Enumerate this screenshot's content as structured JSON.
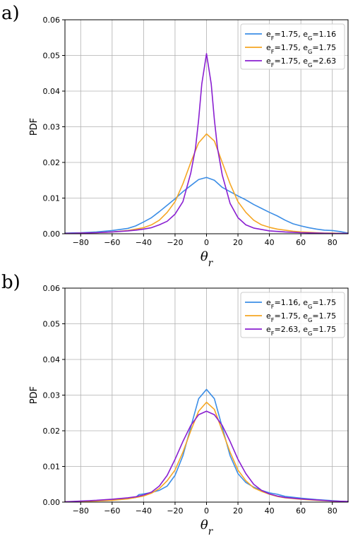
{
  "chart_data": [
    {
      "type": "line",
      "panel_label": "a)",
      "xlabel": "θ",
      "xlabel_sub": "r",
      "ylabel": "PDF",
      "xlim": [
        -90,
        90
      ],
      "ylim": [
        0,
        0.06
      ],
      "xticks": [
        -80,
        -60,
        -40,
        -20,
        0,
        20,
        40,
        60,
        80
      ],
      "yticks": [
        0.0,
        0.01,
        0.02,
        0.03,
        0.04,
        0.05,
        0.06
      ],
      "ytick_labels": [
        "0.00",
        "0.01",
        "0.02",
        "0.03",
        "0.04",
        "0.05",
        "0.06"
      ],
      "grid": true,
      "legend_position": "top-right",
      "series": [
        {
          "name": "e_F=1.75, e_G=1.16",
          "legend": {
            "a": "e",
            "a_sub": "F",
            "b": "=1.75, e",
            "b_sub": "G",
            "c": "=1.16"
          },
          "color": "#3c8ee6",
          "x": [
            -90,
            -80,
            -70,
            -60,
            -50,
            -45,
            -40,
            -35,
            -30,
            -25,
            -20,
            -15,
            -10,
            -5,
            0,
            5,
            10,
            15,
            20,
            25,
            30,
            35,
            40,
            45,
            50,
            55,
            60,
            65,
            70,
            75,
            80,
            85,
            90
          ],
          "y": [
            0.0002,
            0.0003,
            0.0005,
            0.0009,
            0.0015,
            0.0022,
            0.0033,
            0.0045,
            0.0062,
            0.008,
            0.0098,
            0.0118,
            0.0135,
            0.0152,
            0.0158,
            0.015,
            0.013,
            0.0118,
            0.0106,
            0.0095,
            0.0082,
            0.0071,
            0.006,
            0.005,
            0.0038,
            0.0028,
            0.0022,
            0.0017,
            0.0013,
            0.001,
            0.0009,
            0.0006,
            0.0002
          ]
        },
        {
          "name": "e_F=1.75, e_G=1.75",
          "legend": {
            "a": "e",
            "a_sub": "F",
            "b": "=1.75, e",
            "b_sub": "G",
            "c": "=1.75"
          },
          "color": "#f5a623",
          "x": [
            -90,
            -80,
            -70,
            -60,
            -50,
            -45,
            -40,
            -35,
            -30,
            -25,
            -20,
            -15,
            -10,
            -5,
            0,
            5,
            10,
            15,
            20,
            25,
            30,
            35,
            40,
            45,
            50,
            55,
            60,
            65,
            70,
            75,
            80,
            85,
            90
          ],
          "y": [
            0.0001,
            0.0002,
            0.0003,
            0.0005,
            0.0009,
            0.0013,
            0.0017,
            0.0025,
            0.0038,
            0.006,
            0.009,
            0.014,
            0.02,
            0.0255,
            0.028,
            0.026,
            0.02,
            0.014,
            0.009,
            0.006,
            0.0038,
            0.0025,
            0.0018,
            0.0013,
            0.001,
            0.0007,
            0.0005,
            0.0004,
            0.0003,
            0.0002,
            0.0002,
            0.0001,
            0.0001
          ]
        },
        {
          "name": "e_F=1.75, e_G=2.63",
          "legend": {
            "a": "e",
            "a_sub": "F",
            "b": "=1.75, e",
            "b_sub": "G",
            "c": "=2.63"
          },
          "color": "#8a1fd1",
          "x": [
            -90,
            -80,
            -70,
            -60,
            -50,
            -45,
            -40,
            -35,
            -30,
            -25,
            -20,
            -15,
            -10,
            -7,
            -5,
            -3,
            0,
            3,
            5,
            7,
            10,
            15,
            20,
            25,
            30,
            35,
            40,
            50,
            60,
            70,
            80,
            90
          ],
          "y": [
            0.0001,
            0.0002,
            0.0003,
            0.0005,
            0.0008,
            0.001,
            0.0013,
            0.0017,
            0.0025,
            0.0035,
            0.0055,
            0.009,
            0.017,
            0.024,
            0.032,
            0.042,
            0.0505,
            0.042,
            0.032,
            0.024,
            0.0165,
            0.0085,
            0.0045,
            0.0025,
            0.0016,
            0.0012,
            0.0008,
            0.0005,
            0.0003,
            0.0002,
            0.0001,
            0.0001
          ]
        }
      ]
    },
    {
      "type": "line",
      "panel_label": "b)",
      "xlabel": "θ",
      "xlabel_sub": "r",
      "ylabel": "PDF",
      "xlim": [
        -90,
        90
      ],
      "ylim": [
        0,
        0.06
      ],
      "xticks": [
        -80,
        -60,
        -40,
        -20,
        0,
        20,
        40,
        60,
        80
      ],
      "yticks": [
        0.0,
        0.01,
        0.02,
        0.03,
        0.04,
        0.05,
        0.06
      ],
      "ytick_labels": [
        "0.00",
        "0.01",
        "0.02",
        "0.03",
        "0.04",
        "0.05",
        "0.06"
      ],
      "grid": true,
      "legend_position": "top-right",
      "series": [
        {
          "name": "e_F=1.16, e_G=1.75",
          "legend": {
            "a": "e",
            "a_sub": "F",
            "b": "=1.16, e",
            "b_sub": "G",
            "c": "=1.75"
          },
          "color": "#3c8ee6",
          "x": [
            -90,
            -80,
            -70,
            -60,
            -50,
            -45,
            -43,
            -40,
            -35,
            -30,
            -25,
            -20,
            -15,
            -10,
            -5,
            0,
            5,
            10,
            15,
            20,
            25,
            30,
            35,
            40,
            45,
            50,
            60,
            70,
            80,
            90
          ],
          "y": [
            0.0001,
            0.0002,
            0.0004,
            0.0006,
            0.001,
            0.0013,
            0.0021,
            0.0023,
            0.0027,
            0.0033,
            0.0045,
            0.0075,
            0.013,
            0.021,
            0.029,
            0.0316,
            0.029,
            0.021,
            0.013,
            0.008,
            0.0055,
            0.0042,
            0.0033,
            0.0026,
            0.0022,
            0.0016,
            0.0011,
            0.0007,
            0.0004,
            0.0001
          ]
        },
        {
          "name": "e_F=1.75, e_G=1.75",
          "legend": {
            "a": "e",
            "a_sub": "F",
            "b": "=1.75, e",
            "b_sub": "G",
            "c": "=1.75"
          },
          "color": "#f5a623",
          "x": [
            -90,
            -80,
            -70,
            -60,
            -50,
            -45,
            -40,
            -35,
            -30,
            -25,
            -20,
            -15,
            -10,
            -5,
            0,
            5,
            10,
            15,
            20,
            25,
            30,
            35,
            40,
            45,
            50,
            60,
            70,
            80,
            90
          ],
          "y": [
            0.0001,
            0.0002,
            0.0003,
            0.0005,
            0.0009,
            0.0013,
            0.0017,
            0.0025,
            0.0038,
            0.006,
            0.009,
            0.014,
            0.02,
            0.0255,
            0.028,
            0.026,
            0.02,
            0.014,
            0.009,
            0.006,
            0.004,
            0.003,
            0.0022,
            0.0016,
            0.0012,
            0.0008,
            0.0005,
            0.0003,
            0.0001
          ]
        },
        {
          "name": "e_F=2.63, e_G=1.75",
          "legend": {
            "a": "e",
            "a_sub": "F",
            "b": "=2.63, e",
            "b_sub": "G",
            "c": "=1.75"
          },
          "color": "#8a1fd1",
          "x": [
            -90,
            -80,
            -70,
            -60,
            -50,
            -45,
            -40,
            -35,
            -30,
            -25,
            -20,
            -15,
            -10,
            -5,
            0,
            5,
            10,
            15,
            20,
            25,
            30,
            35,
            40,
            45,
            50,
            60,
            70,
            80,
            90
          ],
          "y": [
            0.0001,
            0.0003,
            0.0005,
            0.0008,
            0.0012,
            0.0015,
            0.002,
            0.0028,
            0.0045,
            0.0075,
            0.012,
            0.017,
            0.0215,
            0.0245,
            0.0255,
            0.0245,
            0.0215,
            0.017,
            0.012,
            0.008,
            0.005,
            0.0033,
            0.0023,
            0.0017,
            0.0013,
            0.0009,
            0.0006,
            0.0003,
            0.0002
          ]
        }
      ]
    }
  ]
}
